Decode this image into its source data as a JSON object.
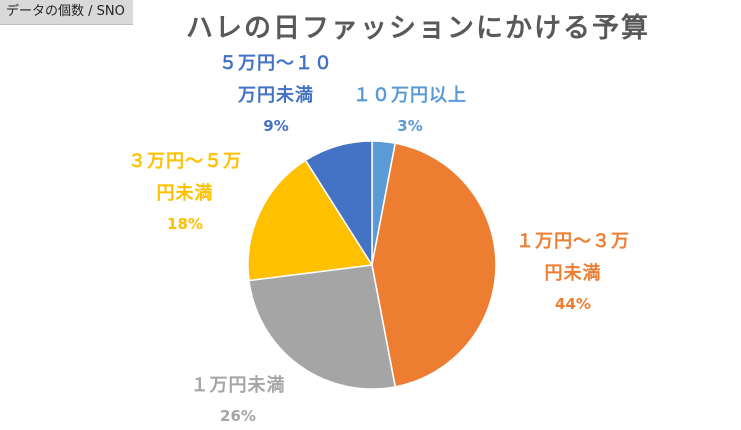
{
  "field_tag": "データの個数 / SNO",
  "chart_data": {
    "type": "pie",
    "title": "ハレの日ファッションにかける予算",
    "slices": [
      {
        "label": [
          "１０万円以上"
        ],
        "value": 3,
        "percent_label": "3%",
        "color": "#5b9bd5"
      },
      {
        "label": [
          "１万円～３万",
          "円未満"
        ],
        "value": 44,
        "percent_label": "44%",
        "color": "#ed7d31"
      },
      {
        "label": [
          "１万円未満"
        ],
        "value": 26,
        "percent_label": "26%",
        "color": "#a5a5a5"
      },
      {
        "label": [
          "３万円～５万",
          "円未満"
        ],
        "value": 18,
        "percent_label": "18%",
        "color": "#ffc000"
      },
      {
        "label": [
          "５万円～１０",
          "万円未満"
        ],
        "value": 9,
        "percent_label": "9%",
        "color": "#4472c4"
      }
    ],
    "start_angle": "12 o'clock",
    "direction": "clockwise",
    "data_labels": "category name and percentage, outside end"
  }
}
